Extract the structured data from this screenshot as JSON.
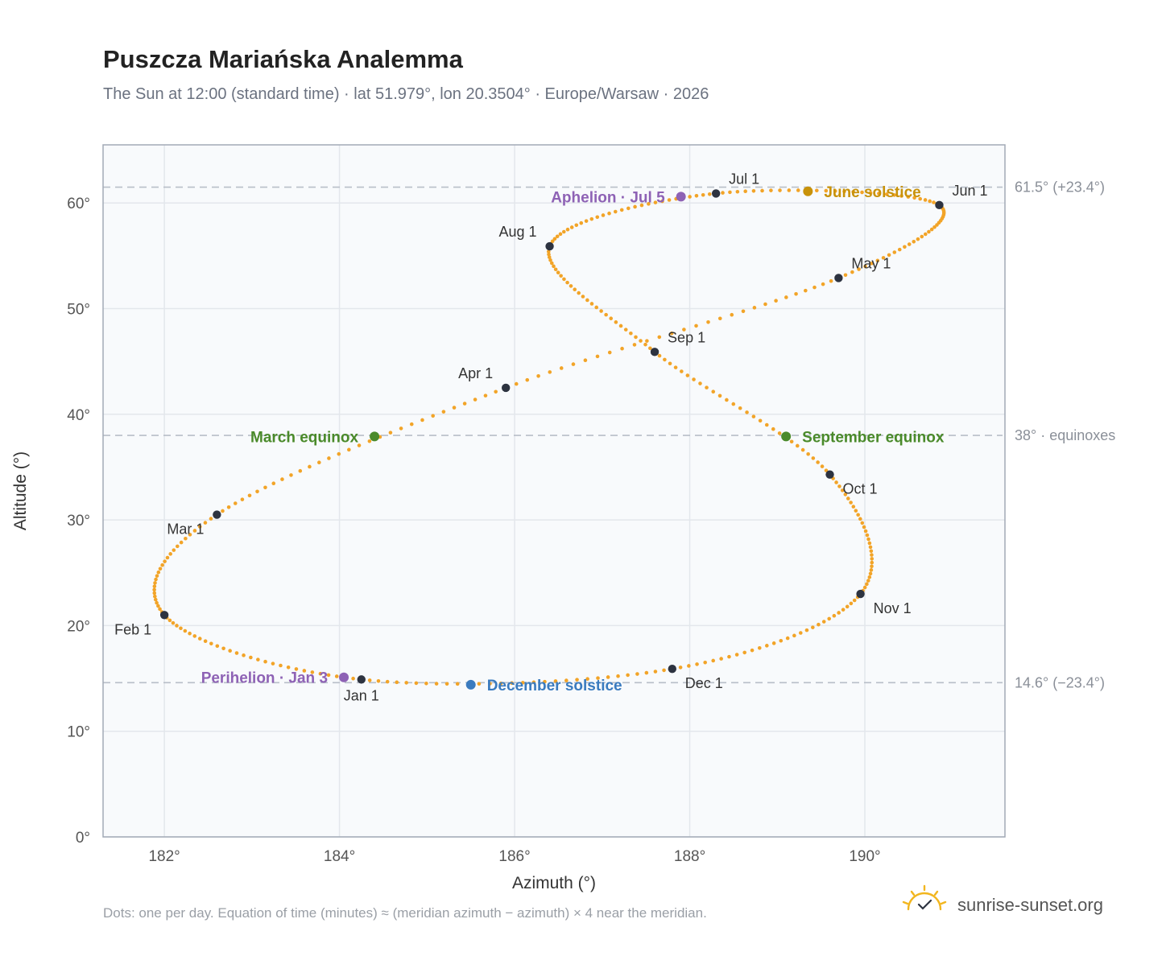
{
  "header": {
    "title": "Puszcza Mariańska Analemma",
    "subtitle": "The Sun at 12:00 (standard time) · lat 51.979°, lon 20.3504° · Europe/Warsaw · 2026"
  },
  "reference_lines": [
    {
      "value": 61.5,
      "label": "61.5° (+23.4°)"
    },
    {
      "value": 38.0,
      "label": "38° · equinoxes"
    },
    {
      "value": 14.6,
      "label": "14.6° (−23.4°)"
    }
  ],
  "footer": {
    "note": "Dots: one per day. Equation of time (minutes) ≈ (meridian azimuth − azimuth) × 4 near the meridian.",
    "brand": "sunrise-sunset.org",
    "brand_icon": "sun-check-icon"
  },
  "colors": {
    "curve": "#f2a428",
    "month": "#2d3340",
    "aphelion": "#8e62b5",
    "perihelion": "#8e62b5",
    "june": "#c8920a",
    "december": "#3a7bbf",
    "equinox": "#4a8a2a",
    "reference": "#b8bec8",
    "grid": "#e3e7ec",
    "plot_bg": "#f8fafc",
    "frame": "#a2aab6"
  },
  "chart_data": {
    "type": "scatter",
    "xlabel": "Azimuth (°)",
    "ylabel": "Altitude (°)",
    "xlim": [
      181.3,
      191.6
    ],
    "ylim": [
      0,
      65.5
    ],
    "xticks": [
      182,
      184,
      186,
      188,
      190
    ],
    "yticks": [
      0,
      10,
      20,
      30,
      40,
      50,
      60
    ],
    "xtick_labels": [
      "182°",
      "184°",
      "186°",
      "188°",
      "190°"
    ],
    "ytick_labels": [
      "0°",
      "10°",
      "20°",
      "30°",
      "40°",
      "50°",
      "60°"
    ],
    "grid": true,
    "series": [
      {
        "points": [
          {
            "day": 1,
            "az": 184.25,
            "alt": 14.9
          },
          {
            "day": 32,
            "az": 182.0,
            "alt": 21.0
          },
          {
            "day": 60,
            "az": 182.6,
            "alt": 30.5
          },
          {
            "day": 91,
            "az": 185.9,
            "alt": 42.5
          },
          {
            "day": 121,
            "az": 189.7,
            "alt": 52.9
          },
          {
            "day": 152,
            "az": 190.85,
            "alt": 59.8
          },
          {
            "day": 182,
            "az": 188.3,
            "alt": 60.9
          },
          {
            "day": 213,
            "az": 186.4,
            "alt": 55.9
          },
          {
            "day": 244,
            "az": 187.6,
            "alt": 45.9
          },
          {
            "day": 274,
            "az": 189.6,
            "alt": 34.3
          },
          {
            "day": 305,
            "az": 189.95,
            "alt": 23.0
          },
          {
            "day": 335,
            "az": 187.8,
            "alt": 15.9
          },
          {
            "day": 366,
            "az": 184.25,
            "alt": 14.9
          }
        ]
      }
    ],
    "month_markers": [
      {
        "label": "Jan 1",
        "az": 184.25,
        "alt": 14.9,
        "anchor": "middle",
        "pos": "below"
      },
      {
        "label": "Feb 1",
        "az": 182.0,
        "alt": 21.0,
        "anchor": "end",
        "pos": "below-left"
      },
      {
        "label": "Mar 1",
        "az": 182.6,
        "alt": 30.5,
        "anchor": "end",
        "pos": "below-left"
      },
      {
        "label": "Apr 1",
        "az": 185.9,
        "alt": 42.5,
        "anchor": "end",
        "pos": "above-left"
      },
      {
        "label": "May 1",
        "az": 189.7,
        "alt": 52.9,
        "anchor": "start",
        "pos": "above-right"
      },
      {
        "label": "Jun 1",
        "az": 190.85,
        "alt": 59.8,
        "anchor": "start",
        "pos": "above-right"
      },
      {
        "label": "Jul 1",
        "az": 188.3,
        "alt": 60.9,
        "anchor": "start",
        "pos": "above-right"
      },
      {
        "label": "Aug 1",
        "az": 186.4,
        "alt": 55.9,
        "anchor": "end",
        "pos": "above-left"
      },
      {
        "label": "Sep 1",
        "az": 187.6,
        "alt": 45.9,
        "anchor": "start",
        "pos": "above-right"
      },
      {
        "label": "Oct 1",
        "az": 189.6,
        "alt": 34.3,
        "anchor": "start",
        "pos": "below-right"
      },
      {
        "label": "Nov 1",
        "az": 189.95,
        "alt": 23.0,
        "anchor": "start",
        "pos": "below-right"
      },
      {
        "label": "Dec 1",
        "az": 187.8,
        "alt": 15.9,
        "anchor": "start",
        "pos": "below-right"
      }
    ],
    "events": [
      {
        "label": "Aphelion · Jul 5",
        "az": 187.9,
        "alt": 60.6,
        "color_key": "aphelion",
        "anchor": "end"
      },
      {
        "label": "June solstice",
        "az": 189.35,
        "alt": 61.1,
        "color_key": "june",
        "anchor": "start"
      },
      {
        "label": "March equinox",
        "az": 184.4,
        "alt": 37.9,
        "color_key": "equinox",
        "anchor": "end"
      },
      {
        "label": "September equinox",
        "az": 189.1,
        "alt": 37.9,
        "color_key": "equinox",
        "anchor": "start"
      },
      {
        "label": "Perihelion · Jan 3",
        "az": 184.05,
        "alt": 15.1,
        "color_key": "perihelion",
        "anchor": "end"
      },
      {
        "label": "December solstice",
        "az": 185.5,
        "alt": 14.4,
        "color_key": "december",
        "anchor": "start"
      }
    ]
  }
}
